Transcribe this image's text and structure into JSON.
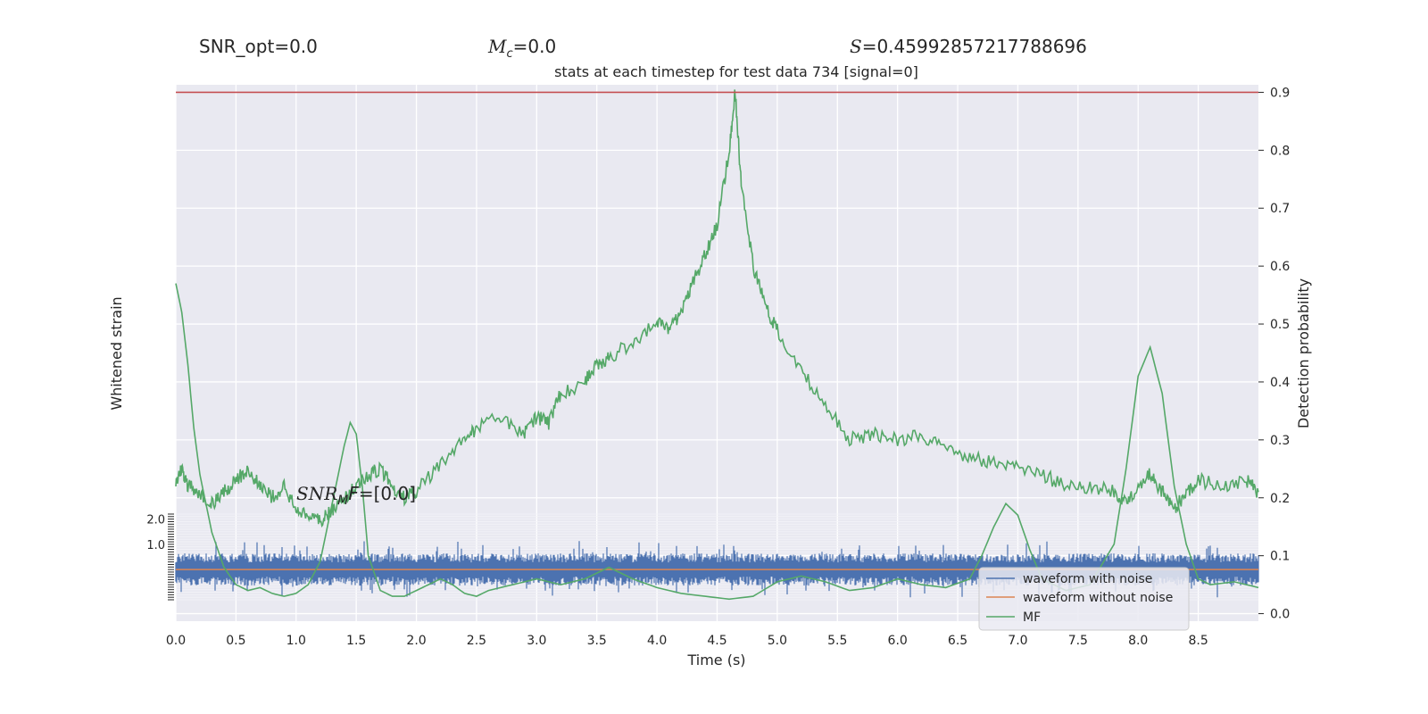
{
  "stats": {
    "snr_opt": "SNR_opt=0.0",
    "mc_symbol": "M",
    "mc_sub": "c",
    "mc_value": "=0.0",
    "s_symbol": "S",
    "s_value": "=0.45992857217788696",
    "snr_mf_symbol": "SNR",
    "snr_mf_sub": "M",
    "snr_mf_tail": "F",
    "snr_mf_value": "=[0.0]"
  },
  "colors": {
    "axes_bg": "#e9e9f1",
    "grid": "#ffffff",
    "noise": "#4c72b0",
    "clean": "#dd8452",
    "mf": "#55a868",
    "threshold": "#c44e52"
  },
  "chart_data": {
    "type": "line",
    "title": "stats at each timestep for test data 734 [signal=0]",
    "xlabel": "Time (s)",
    "ylabel_left": "Whitened strain",
    "ylabel_right": "Detection probability",
    "xlim": [
      0,
      9
    ],
    "ylim_right": [
      -0.013,
      0.913
    ],
    "ylim_left": [
      -1.2,
      2.2
    ],
    "x_ticks": [
      "0.0",
      "0.5",
      "1.0",
      "1.5",
      "2.0",
      "2.5",
      "3.0",
      "3.5",
      "4.0",
      "4.5",
      "5.0",
      "5.5",
      "6.0",
      "6.5",
      "7.0",
      "7.5",
      "8.0",
      "8.5"
    ],
    "y_ticks_right": [
      "0.0",
      "0.1",
      "0.2",
      "0.3",
      "0.4",
      "0.5",
      "0.6",
      "0.7",
      "0.8",
      "0.9"
    ],
    "y_ticks_left_visible": [
      "2.0",
      "1.0"
    ],
    "grid": true,
    "legend": {
      "position": "lower-right",
      "entries": [
        "waveform with noise",
        "waveform without noise",
        "MF"
      ]
    },
    "threshold": 0.9,
    "series": [
      {
        "name": "detection probability",
        "x": [
          0,
          0.05,
          0.1,
          0.2,
          0.3,
          0.4,
          0.5,
          0.6,
          0.7,
          0.8,
          0.9,
          1.0,
          1.1,
          1.2,
          1.3,
          1.4,
          1.5,
          1.6,
          1.7,
          1.8,
          1.9,
          2.0,
          2.2,
          2.4,
          2.5,
          2.7,
          2.9,
          3.0,
          3.1,
          3.2,
          3.4,
          3.5,
          3.6,
          3.8,
          4.0,
          4.1,
          4.2,
          4.3,
          4.4,
          4.5,
          4.6,
          4.65,
          4.7,
          4.8,
          4.9,
          5.0,
          5.2,
          5.4,
          5.6,
          5.8,
          6.0,
          6.2,
          6.4,
          6.6,
          6.8,
          7.0,
          7.2,
          7.4,
          7.6,
          7.8,
          7.9,
          8.0,
          8.1,
          8.2,
          8.3,
          8.4,
          8.5,
          8.7,
          8.9,
          9.0
        ],
        "values": [
          0.22,
          0.25,
          0.22,
          0.21,
          0.19,
          0.21,
          0.23,
          0.25,
          0.22,
          0.2,
          0.22,
          0.18,
          0.17,
          0.16,
          0.18,
          0.2,
          0.22,
          0.24,
          0.25,
          0.22,
          0.2,
          0.21,
          0.26,
          0.3,
          0.32,
          0.34,
          0.31,
          0.34,
          0.33,
          0.38,
          0.4,
          0.43,
          0.44,
          0.47,
          0.5,
          0.49,
          0.52,
          0.57,
          0.62,
          0.67,
          0.8,
          0.9,
          0.74,
          0.6,
          0.53,
          0.49,
          0.42,
          0.36,
          0.3,
          0.31,
          0.3,
          0.31,
          0.28,
          0.27,
          0.26,
          0.25,
          0.24,
          0.22,
          0.22,
          0.21,
          0.19,
          0.22,
          0.24,
          0.21,
          0.18,
          0.21,
          0.23,
          0.22,
          0.23,
          0.21
        ]
      },
      {
        "name": "MF",
        "x": [
          0,
          0.05,
          0.1,
          0.15,
          0.2,
          0.3,
          0.4,
          0.5,
          0.6,
          0.7,
          0.8,
          0.9,
          1.0,
          1.1,
          1.2,
          1.3,
          1.4,
          1.45,
          1.5,
          1.55,
          1.6,
          1.7,
          1.8,
          1.9,
          2.0,
          2.1,
          2.2,
          2.3,
          2.4,
          2.5,
          2.6,
          2.8,
          3.0,
          3.2,
          3.4,
          3.6,
          3.8,
          4.0,
          4.2,
          4.4,
          4.6,
          4.8,
          5.0,
          5.2,
          5.4,
          5.6,
          5.8,
          6.0,
          6.2,
          6.4,
          6.6,
          6.7,
          6.8,
          6.9,
          7.0,
          7.1,
          7.2,
          7.4,
          7.6,
          7.8,
          7.9,
          8.0,
          8.1,
          8.2,
          8.3,
          8.4,
          8.5,
          8.6,
          8.8,
          9.0
        ],
        "values": [
          0.57,
          0.52,
          0.43,
          0.32,
          0.24,
          0.14,
          0.08,
          0.05,
          0.04,
          0.045,
          0.035,
          0.03,
          0.035,
          0.05,
          0.09,
          0.19,
          0.29,
          0.33,
          0.31,
          0.22,
          0.1,
          0.04,
          0.03,
          0.03,
          0.04,
          0.05,
          0.06,
          0.05,
          0.035,
          0.03,
          0.04,
          0.05,
          0.06,
          0.05,
          0.06,
          0.08,
          0.06,
          0.045,
          0.035,
          0.03,
          0.025,
          0.03,
          0.055,
          0.065,
          0.055,
          0.04,
          0.045,
          0.06,
          0.05,
          0.045,
          0.06,
          0.1,
          0.15,
          0.19,
          0.17,
          0.11,
          0.06,
          0.04,
          0.05,
          0.12,
          0.25,
          0.41,
          0.46,
          0.38,
          0.22,
          0.12,
          0.06,
          0.05,
          0.055,
          0.045
        ]
      }
    ]
  }
}
